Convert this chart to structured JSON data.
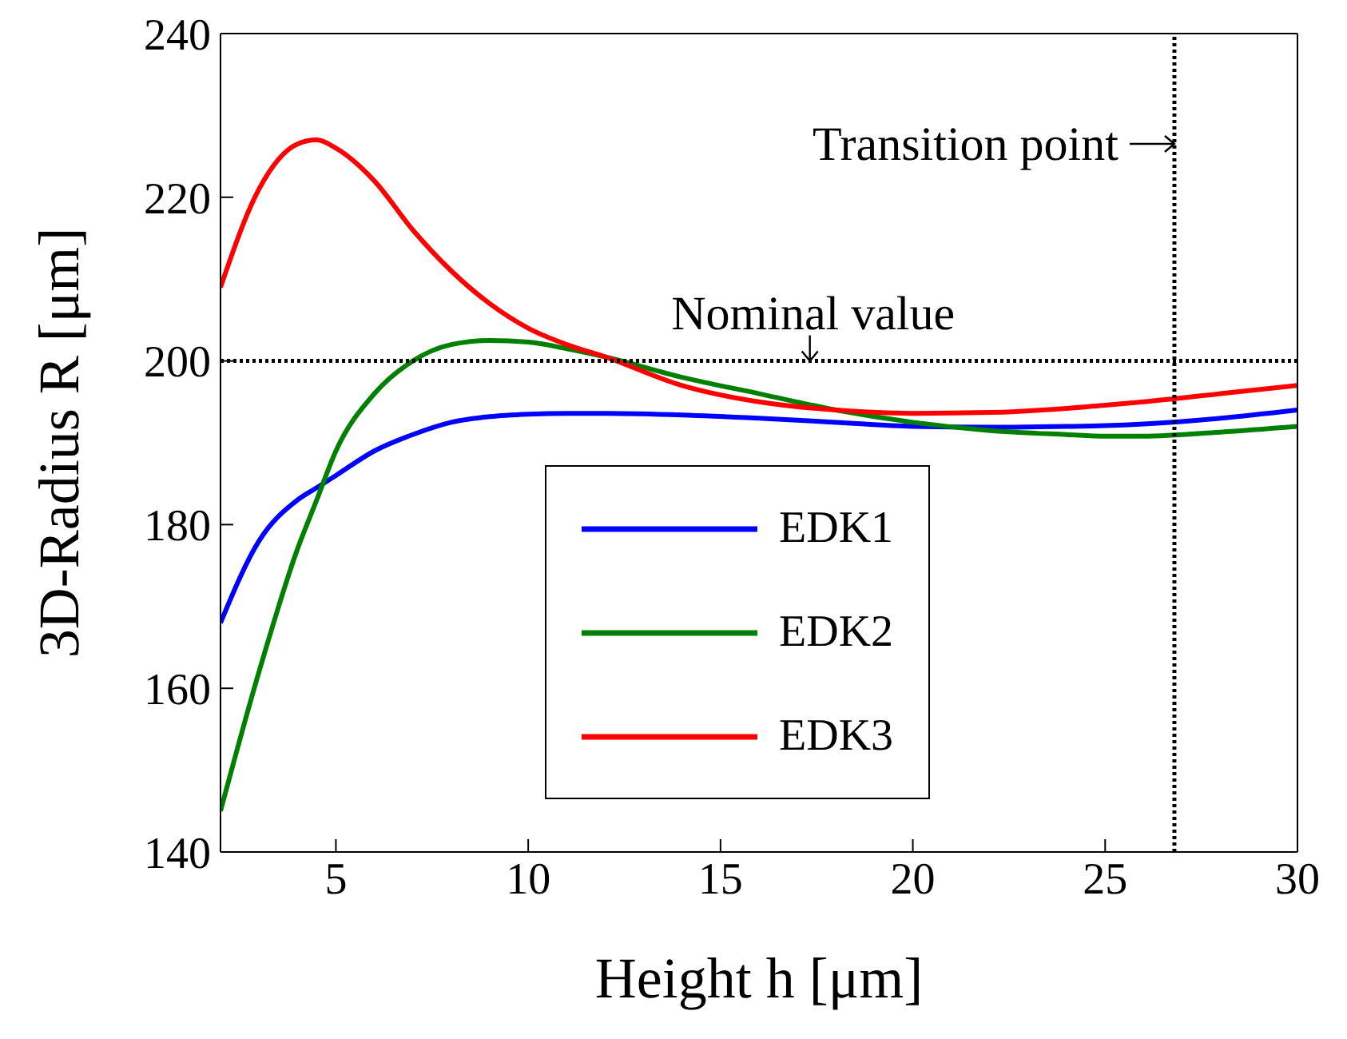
{
  "chart_data": {
    "type": "line",
    "xlabel": "Height  h [μm]",
    "ylabel": "3D-Radius  R  [μm]",
    "xlim": [
      2,
      30
    ],
    "xticks": [
      5,
      10,
      15,
      20,
      25,
      30
    ],
    "ylim": [
      140,
      240
    ],
    "yticks": [
      140,
      160,
      180,
      200,
      220,
      240
    ],
    "grid": false,
    "legend": "bottom",
    "marker": "none",
    "line_style": "solid",
    "x": [
      2,
      3,
      4,
      4.5,
      5,
      6,
      7,
      8,
      9,
      10,
      11,
      12,
      14,
      16,
      18,
      20,
      22,
      24,
      25,
      26,
      28,
      30
    ],
    "series": [
      {
        "name": "EDK1",
        "color": "#0000ff",
        "values": [
          168,
          178,
          183,
          184.5,
          186,
          189,
          191,
          192.5,
          193.2,
          193.5,
          193.6,
          193.6,
          193.4,
          193,
          192.5,
          192,
          191.9,
          192,
          192.1,
          192.3,
          193,
          194
        ]
      },
      {
        "name": "EDK2",
        "color": "#008000",
        "values": [
          145,
          162,
          177,
          183,
          189,
          196,
          200,
          202,
          202.5,
          202.3,
          201.5,
          200.5,
          198,
          196,
          194,
          192.5,
          191.5,
          191,
          190.8,
          190.8,
          191.3,
          192
        ]
      },
      {
        "name": "EDK3",
        "color": "#ff0000",
        "values": [
          209,
          221,
          226.5,
          227,
          226,
          222,
          216,
          211,
          207,
          204,
          202,
          200.5,
          197,
          195,
          194,
          193.6,
          193.7,
          194.2,
          194.6,
          195,
          196,
          197
        ]
      }
    ],
    "ref_lines": [
      {
        "axis": "y",
        "value": 200,
        "label": "Nominal value",
        "line_style": "dotted",
        "color": "#000000"
      },
      {
        "axis": "x",
        "value": 26.8,
        "label": "Transition point",
        "line_style": "dotted",
        "color": "#000000"
      }
    ]
  }
}
